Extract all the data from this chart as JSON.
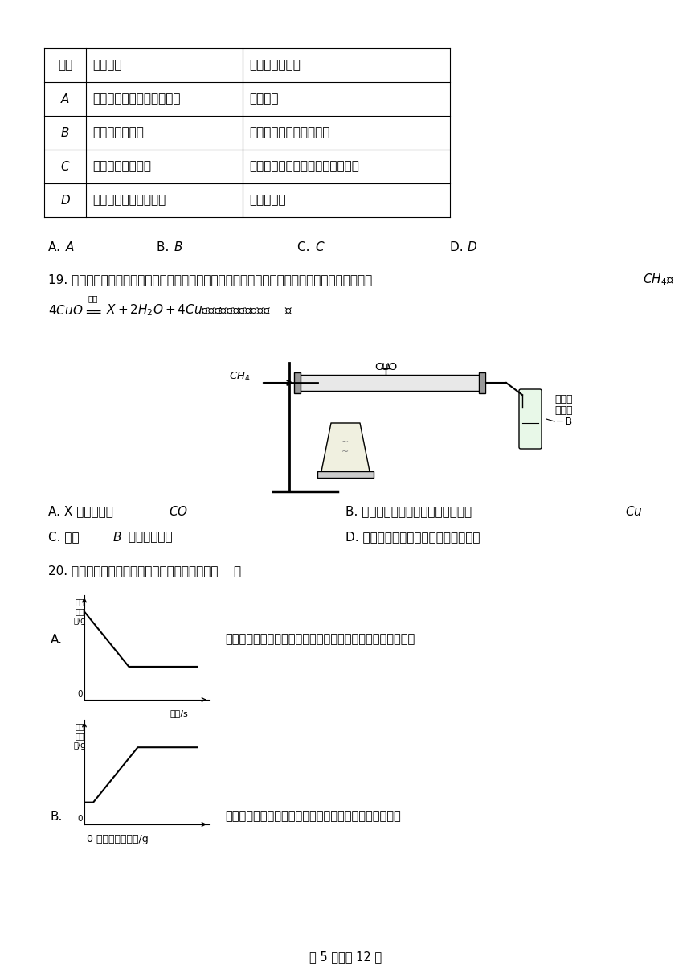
{
  "bg_color": "#ffffff",
  "table": {
    "headers": [
      "选项",
      "实验目的",
      "实验操作或方法"
    ],
    "rows": [
      [
        "A",
        "鉴别实验室中的食盐和蔗糖",
        "品尝味道"
      ],
      [
        "B",
        "鉴别空气和氧气",
        "分别伸入带火星的小木条"
      ],
      [
        "C",
        "收集较纯净的氧气",
        "导管口刚冒气泡时，立即开始收集"
      ],
      [
        "D",
        "除去氯酸钾中的氯化钾",
        "给固体加热"
      ]
    ]
  },
  "footer": "第 5 页，共 12 页"
}
